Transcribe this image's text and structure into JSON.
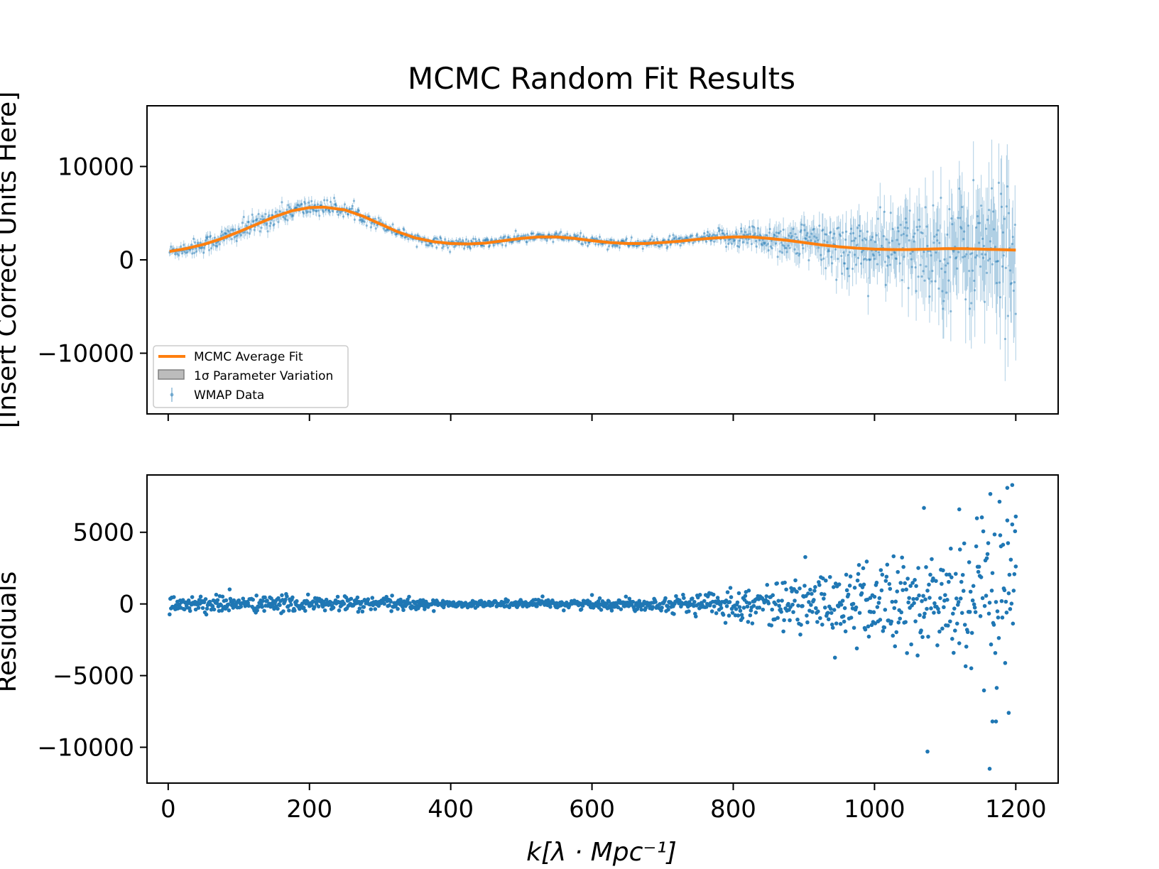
{
  "chart_data": [
    {
      "type": "line",
      "title": "MCMC Random Fit Results",
      "ylabel": "[Insert Correct Units Here]",
      "xlabel": "",
      "xlim": [
        -30,
        1260
      ],
      "ylim": [
        -16500,
        16500
      ],
      "xticks": [
        0,
        200,
        400,
        600,
        800,
        1000,
        1200
      ],
      "yticks": [
        -10000,
        0,
        10000
      ],
      "ytick_labels": [
        "−10000",
        "0",
        "10000"
      ],
      "legend": {
        "placement": "lower-left",
        "entries": [
          "MCMC Average Fit",
          "1σ Parameter Variation",
          "WMAP Data"
        ]
      },
      "series": [
        {
          "name": "MCMC Average Fit",
          "kind": "line",
          "color": "#ff7f0e",
          "x": [
            2,
            25,
            50,
            75,
            100,
            125,
            150,
            175,
            200,
            220,
            250,
            275,
            300,
            325,
            350,
            375,
            400,
            425,
            450,
            475,
            500,
            525,
            550,
            575,
            600,
            625,
            650,
            675,
            700,
            725,
            750,
            775,
            800,
            825,
            850,
            875,
            900,
            925,
            950,
            975,
            1000,
            1025,
            1050,
            1075,
            1100,
            1125,
            1150,
            1175,
            1200
          ],
          "y": [
            900,
            1200,
            1650,
            2250,
            3000,
            3800,
            4600,
            5250,
            5600,
            5650,
            5350,
            4700,
            3850,
            3000,
            2350,
            1950,
            1750,
            1700,
            1800,
            2050,
            2300,
            2450,
            2450,
            2300,
            2050,
            1850,
            1750,
            1750,
            1850,
            2000,
            2200,
            2350,
            2450,
            2450,
            2300,
            2100,
            1850,
            1600,
            1400,
            1250,
            1150,
            1100,
            1100,
            1150,
            1200,
            1200,
            1150,
            1100,
            1050
          ]
        },
        {
          "name": "1σ Parameter Variation",
          "kind": "band",
          "color": "#808080"
        },
        {
          "name": "WMAP Data",
          "kind": "errorbar",
          "color": "#1f77b4",
          "x_range": [
            2,
            1200
          ],
          "points": 1199,
          "note": "scattered around the fit; uncertainty grows from ~400 at low k to ~5000 near k=1200"
        }
      ]
    },
    {
      "type": "scatter",
      "title": "",
      "ylabel": "Residuals",
      "xlabel": "k[λ · Mpc⁻¹]",
      "xlim": [
        -30,
        1260
      ],
      "ylim": [
        -12500,
        9000
      ],
      "xticks": [
        0,
        200,
        400,
        600,
        800,
        1000,
        1200
      ],
      "xtick_labels": [
        "0",
        "200",
        "400",
        "600",
        "800",
        "1000",
        "1200"
      ],
      "yticks": [
        -10000,
        -5000,
        0,
        5000
      ],
      "ytick_labels": [
        "−10000",
        "−5000",
        "0",
        "5000"
      ],
      "series": [
        {
          "kind": "scatter",
          "color": "#1f77b4",
          "x_range": [
            2,
            1200
          ],
          "spread": [
            [
              0,
              400
            ],
            [
              300,
              350
            ],
            [
              400,
              150
            ],
            [
              700,
              300
            ],
            [
              850,
              900
            ],
            [
              1000,
              2000
            ],
            [
              1100,
              3000
            ],
            [
              1200,
              4200
            ]
          ],
          "outliers": [
            {
              "x": 1075,
              "y": -10300
            },
            {
              "x": 1163,
              "y": -11500
            },
            {
              "x": 1167,
              "y": -8200
            },
            {
              "x": 1172,
              "y": -8200
            },
            {
              "x": 1190,
              "y": -7600
            },
            {
              "x": 1195,
              "y": 8300
            },
            {
              "x": 1188,
              "y": 8100
            },
            {
              "x": 1070,
              "y": 6700
            },
            {
              "x": 1120,
              "y": 6600
            },
            {
              "x": 1200,
              "y": 6100
            }
          ]
        }
      ]
    }
  ]
}
